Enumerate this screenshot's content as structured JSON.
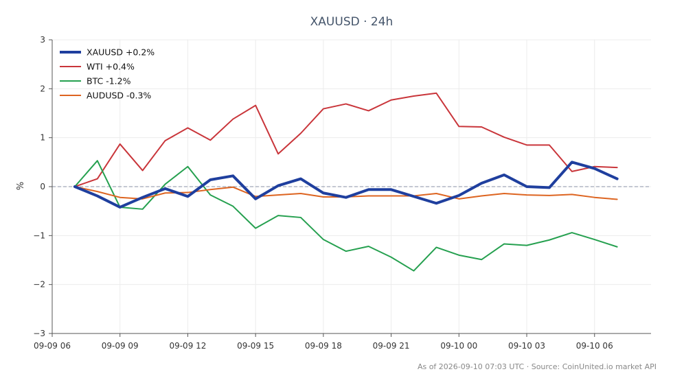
{
  "chart_data": {
    "type": "line",
    "title": "XAUUSD · 24h",
    "ylabel": "%",
    "xlabel": "",
    "ylim": [
      -3,
      3
    ],
    "yticks": [
      3,
      2,
      1,
      0,
      -1,
      -2,
      -3
    ],
    "ytick_labels": [
      "3",
      "2",
      "1",
      "0",
      "−1",
      "−2",
      "−3"
    ],
    "xlim": [
      -1.0,
      25.5
    ],
    "xticks": [
      -1,
      2,
      5,
      8,
      11,
      14,
      17,
      20,
      23
    ],
    "xtick_labels": [
      "09-09 06",
      "09-09 09",
      "09-09 12",
      "09-09 15",
      "09-09 18",
      "09-09 21",
      "09-10 00",
      "09-10 03",
      "09-10 06"
    ],
    "x": [
      0,
      1,
      2,
      3,
      4,
      5,
      6,
      7,
      8,
      9,
      10,
      11,
      12,
      13,
      14,
      15,
      16,
      17,
      18,
      19,
      20,
      21,
      22,
      23,
      24
    ],
    "grid": true,
    "zero_line": true,
    "legend_position": "top-left",
    "series": [
      {
        "name": "XAUUSD +0.2%",
        "color": "#1f3f9e",
        "width": 4,
        "values": [
          0.0,
          -0.19,
          -0.42,
          -0.22,
          -0.04,
          -0.2,
          0.14,
          0.22,
          -0.25,
          0.02,
          0.16,
          -0.13,
          -0.22,
          -0.06,
          -0.06,
          -0.2,
          -0.34,
          -0.18,
          0.07,
          0.24,
          0.0,
          -0.02,
          0.5,
          0.37,
          0.16
        ]
      },
      {
        "name": "WTI +0.4%",
        "color": "#c9353a",
        "width": 2,
        "values": [
          0.0,
          0.16,
          0.87,
          0.33,
          0.94,
          1.2,
          0.95,
          1.38,
          1.66,
          0.67,
          1.09,
          1.59,
          1.69,
          1.55,
          1.77,
          1.85,
          1.91,
          1.23,
          1.22,
          1.01,
          0.85,
          0.85,
          0.31,
          0.41,
          0.39
        ]
      },
      {
        "name": "BTC -1.2%",
        "color": "#25a04f",
        "width": 2,
        "values": [
          0.0,
          0.53,
          -0.42,
          -0.46,
          0.05,
          0.41,
          -0.17,
          -0.4,
          -0.85,
          -0.59,
          -0.63,
          -1.08,
          -1.32,
          -1.22,
          -1.44,
          -1.72,
          -1.24,
          -1.4,
          -1.49,
          -1.17,
          -1.2,
          -1.09,
          -0.94,
          -1.08,
          -1.23
        ]
      },
      {
        "name": "AUDUSD -0.3%",
        "color": "#dd6420",
        "width": 2,
        "values": [
          0.0,
          -0.1,
          -0.22,
          -0.25,
          -0.13,
          -0.12,
          -0.06,
          -0.01,
          -0.2,
          -0.17,
          -0.14,
          -0.21,
          -0.21,
          -0.19,
          -0.19,
          -0.19,
          -0.14,
          -0.25,
          -0.19,
          -0.14,
          -0.17,
          -0.18,
          -0.16,
          -0.22,
          -0.26
        ]
      }
    ],
    "footer": "As of 2026-09-10 07:03 UTC · Source: CoinUnited.io market API"
  }
}
